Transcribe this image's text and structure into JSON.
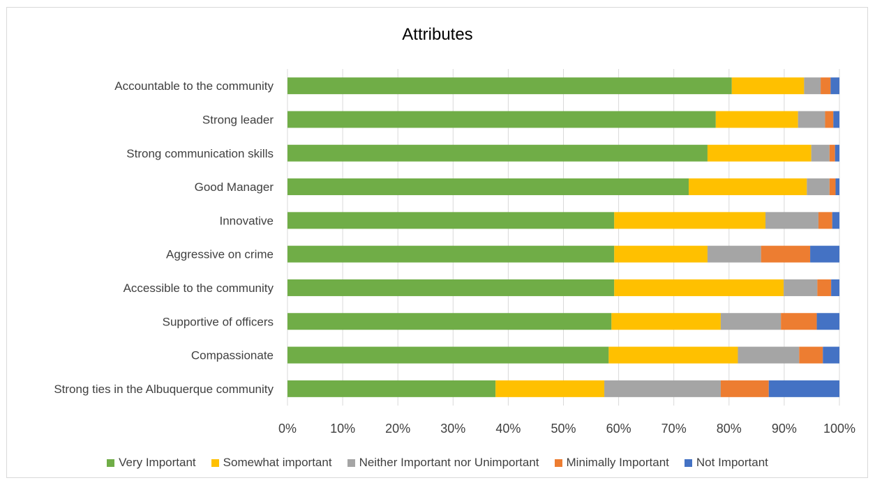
{
  "chart_data": {
    "type": "bar",
    "orientation": "horizontal",
    "stacked": "percent",
    "title": "Attributes",
    "xlabel": "",
    "ylabel": "",
    "xlim": [
      0,
      100
    ],
    "x_ticks": [
      "0%",
      "10%",
      "20%",
      "30%",
      "40%",
      "50%",
      "60%",
      "70%",
      "80%",
      "90%",
      "100%"
    ],
    "grid": "vertical",
    "legend_position": "bottom",
    "categories": [
      "Accountable to the community",
      "Strong leader",
      "Strong communication skills",
      "Good Manager",
      "Innovative",
      "Aggressive on crime",
      "Accessible to the community",
      "Supportive of officers",
      "Compassionate",
      "Strong ties in the Albuquerque community"
    ],
    "series": [
      {
        "name": "Very Important",
        "color": "#70ad47",
        "values": [
          80.5,
          77.6,
          76.1,
          72.7,
          59.2,
          59.2,
          59.2,
          58.7,
          58.2,
          37.7
        ]
      },
      {
        "name": "Somewhat important",
        "color": "#ffc000",
        "values": [
          13.1,
          14.9,
          18.8,
          21.4,
          27.4,
          16.9,
          30.7,
          19.8,
          23.4,
          19.7
        ]
      },
      {
        "name": "Neither Important nor Unimportant",
        "color": "#a5a5a5",
        "values": [
          3.0,
          4.9,
          3.3,
          4.1,
          9.6,
          9.7,
          6.1,
          10.9,
          11.1,
          21.1
        ]
      },
      {
        "name": "Minimally Important",
        "color": "#ed7d31",
        "values": [
          1.8,
          1.5,
          1.0,
          1.1,
          2.5,
          8.9,
          2.5,
          6.5,
          4.3,
          8.7
        ]
      },
      {
        "name": "Not Important",
        "color": "#4472c4",
        "values": [
          1.6,
          1.1,
          0.8,
          0.7,
          1.3,
          5.3,
          1.5,
          4.1,
          3.0,
          12.8
        ]
      }
    ]
  }
}
